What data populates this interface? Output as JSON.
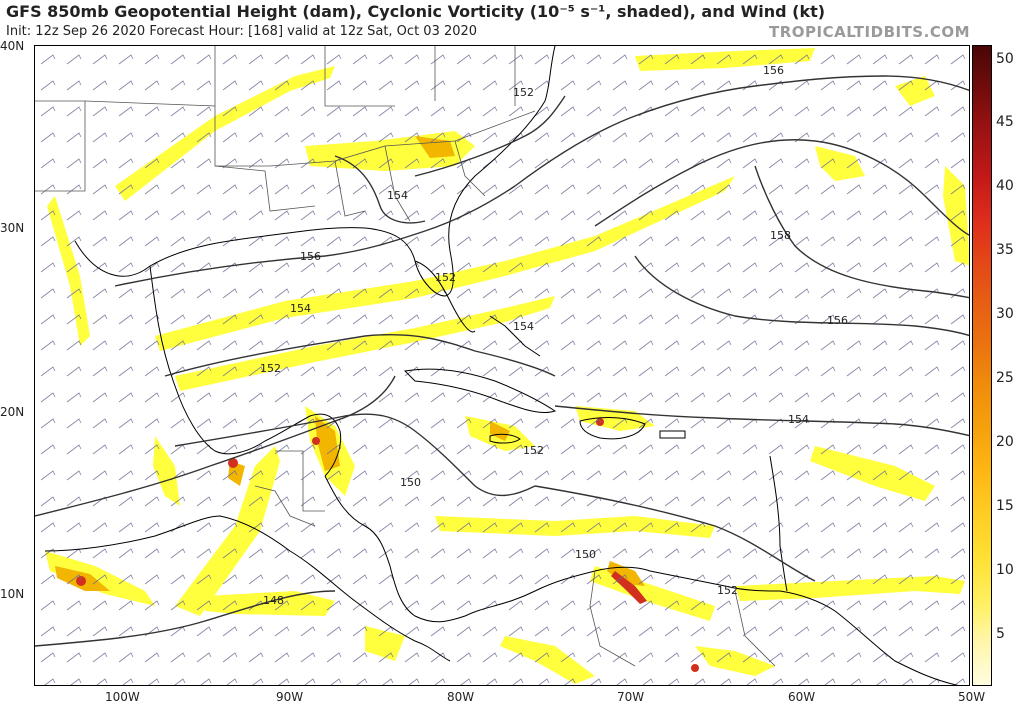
{
  "header": {
    "title": "GFS 850mb Geopotential Height (dam), Cyclonic Vorticity (10⁻⁵ s⁻¹, shaded), and Wind (kt)",
    "subtitle": "Init: 12z Sep 26 2020   Forecast Hour: [168]   valid at 12z Sat, Oct 03 2020",
    "credit": "TROPICALTIDBITS.COM"
  },
  "map": {
    "lat_labels": [
      "40N",
      "30N",
      "20N",
      "10N"
    ],
    "lon_labels": [
      "100W",
      "90W",
      "80W",
      "70W",
      "60W",
      "50W"
    ],
    "contour_labels": [
      "152",
      "154",
      "156",
      "156",
      "158",
      "154",
      "152",
      "150",
      "148",
      "152",
      "156",
      "154",
      "154",
      "152",
      "150",
      "152"
    ],
    "colors": {
      "contour": "#333333",
      "coast": "#000000",
      "border": "#888888",
      "barb": "#6a6a90",
      "vort_low": "#ffff33",
      "vort_mid": "#f2b500",
      "vort_high": "#d2301e"
    }
  },
  "colorbar": {
    "labels": [
      "50",
      "45",
      "40",
      "35",
      "30",
      "25",
      "20",
      "15",
      "10",
      "5"
    ],
    "colors": [
      "#fffde0",
      "#fff6a8",
      "#ffef60",
      "#ffe033",
      "#ffcc22",
      "#ffb814",
      "#f5a20d",
      "#f08c0c",
      "#ea7410",
      "#e65e14",
      "#e34418",
      "#dd2c1c",
      "#c01818",
      "#9a1212",
      "#740c0c",
      "#4a0606"
    ]
  }
}
